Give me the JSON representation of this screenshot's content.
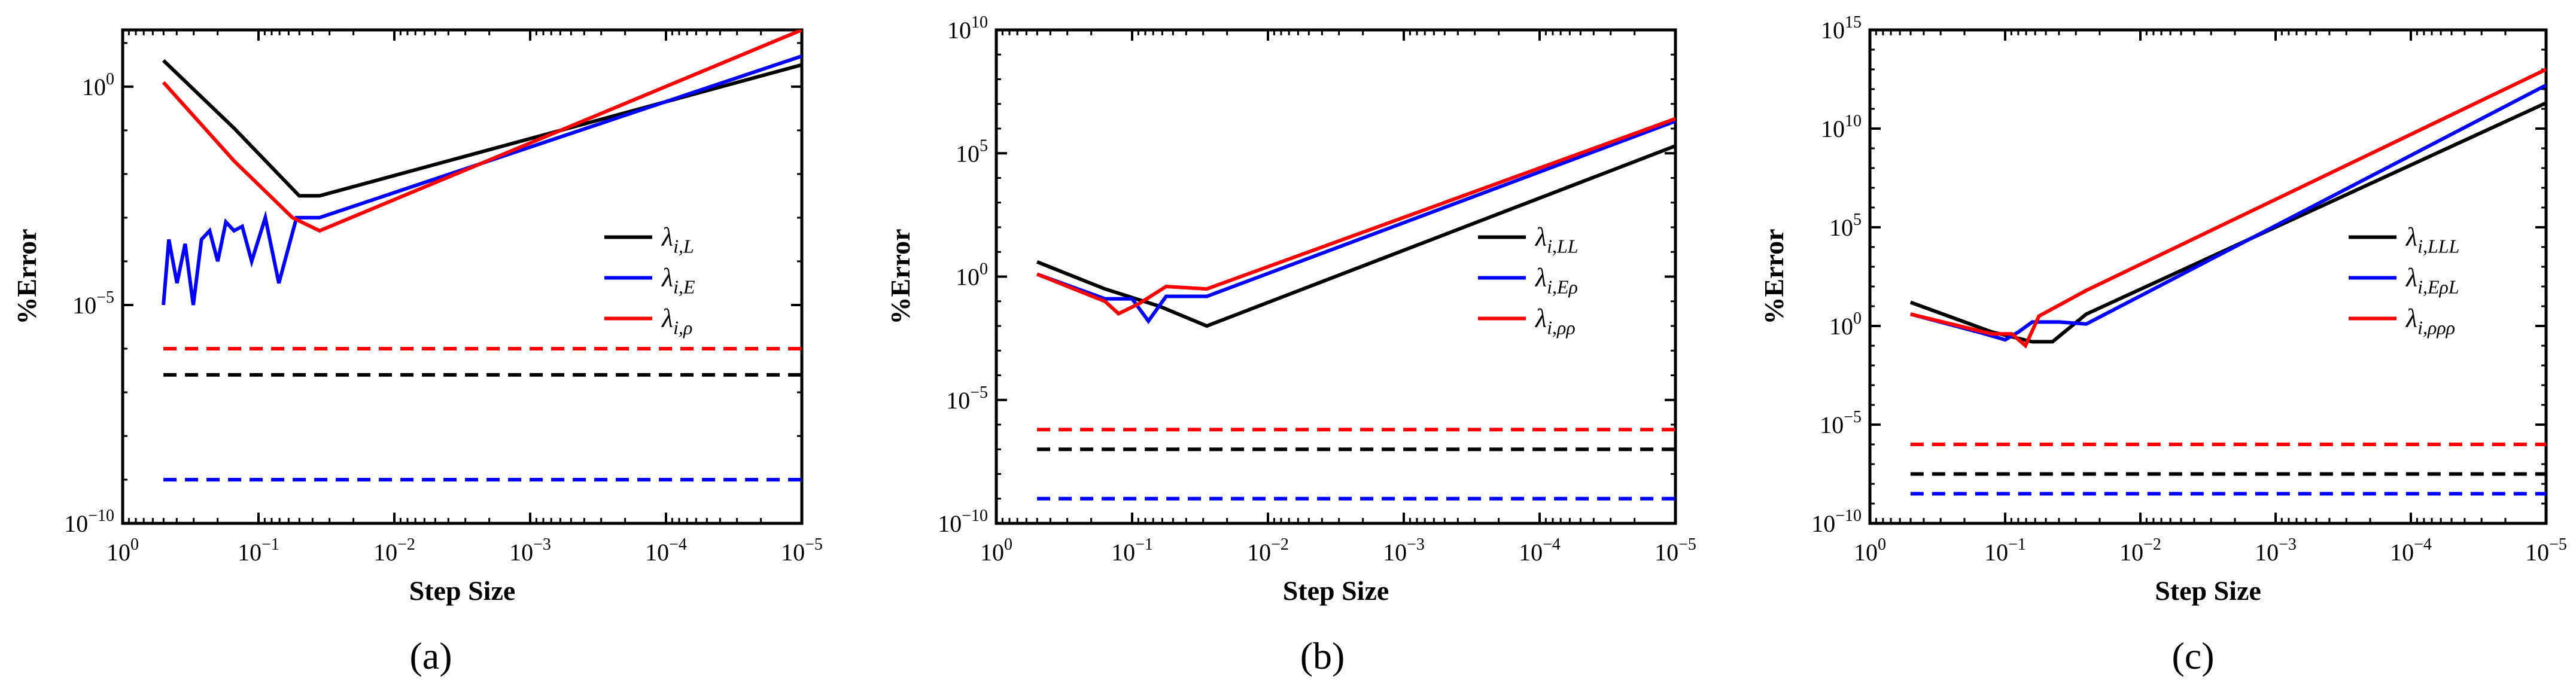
{
  "chart_data": [
    {
      "type": "line",
      "panel_label": "(a)",
      "xlabel": "Step Size",
      "ylabel": "%Error",
      "xscale": "log",
      "yscale": "log",
      "xlim": [
        1,
        1e-05
      ],
      "ylim_exp": [
        -10,
        1.3
      ],
      "x_ticks": [
        {
          "text": "10",
          "sup": "0",
          "exp": 0
        },
        {
          "text": "10",
          "sup": "−1",
          "exp": -1
        },
        {
          "text": "10",
          "sup": "−2",
          "exp": -2
        },
        {
          "text": "10",
          "sup": "−3",
          "exp": -3
        },
        {
          "text": "10",
          "sup": "−4",
          "exp": -4
        },
        {
          "text": "10",
          "sup": "−5",
          "exp": -5
        }
      ],
      "y_ticks": [
        {
          "text": "10",
          "sup": "−10",
          "exp": -10
        },
        {
          "text": "10",
          "sup": "−5",
          "exp": -5
        },
        {
          "text": "10",
          "sup": "0",
          "exp": 0
        }
      ],
      "legend_position": "center-right",
      "series": [
        {
          "name": "λ",
          "sub": "i,L",
          "color": "#000000",
          "style": "solid",
          "log10x": [
            -0.3,
            -0.82,
            -1.3,
            -1.45,
            -5.0
          ],
          "log10y": [
            0.6,
            -0.95,
            -2.5,
            -2.5,
            0.5
          ]
        },
        {
          "name": "λ",
          "sub": "i,E",
          "color": "#0000ff",
          "style": "solid",
          "log10x": [
            -0.3,
            -0.34,
            -0.4,
            -0.46,
            -0.52,
            -0.58,
            -0.64,
            -0.7,
            -0.76,
            -0.82,
            -0.88,
            -0.95,
            -1.05,
            -1.15,
            -1.28,
            -1.45,
            -5.0
          ],
          "log10y": [
            -5.0,
            -3.5,
            -4.5,
            -3.6,
            -5.0,
            -3.5,
            -3.3,
            -4.0,
            -3.1,
            -3.3,
            -3.2,
            -4.0,
            -3.0,
            -4.5,
            -3.0,
            -3.0,
            0.7
          ]
        },
        {
          "name": "λ",
          "sub": "i,ρ",
          "color": "#ff0000",
          "style": "solid",
          "log10x": [
            -0.3,
            -0.82,
            -1.25,
            -1.45,
            -5.0
          ],
          "log10y": [
            0.1,
            -1.7,
            -3.0,
            -3.3,
            1.3
          ]
        },
        {
          "name": "",
          "sub": "",
          "color": "#ff0000",
          "style": "dashed",
          "log10x": [
            -0.3,
            -5.0
          ],
          "log10y": [
            -6.0,
            -6.0
          ]
        },
        {
          "name": "",
          "sub": "",
          "color": "#000000",
          "style": "dashed",
          "log10x": [
            -0.3,
            -5.0
          ],
          "log10y": [
            -6.6,
            -6.6
          ]
        },
        {
          "name": "",
          "sub": "",
          "color": "#0000ff",
          "style": "dashed",
          "log10x": [
            -0.3,
            -5.0
          ],
          "log10y": [
            -9.0,
            -9.0
          ]
        }
      ]
    },
    {
      "type": "line",
      "panel_label": "(b)",
      "xlabel": "Step Size",
      "ylabel": "%Error",
      "xscale": "log",
      "yscale": "log",
      "xlim": [
        1,
        1e-05
      ],
      "ylim_exp": [
        -10,
        10
      ],
      "x_ticks": [
        {
          "text": "10",
          "sup": "0",
          "exp": 0
        },
        {
          "text": "10",
          "sup": "−1",
          "exp": -1
        },
        {
          "text": "10",
          "sup": "−2",
          "exp": -2
        },
        {
          "text": "10",
          "sup": "−3",
          "exp": -3
        },
        {
          "text": "10",
          "sup": "−4",
          "exp": -4
        },
        {
          "text": "10",
          "sup": "−5",
          "exp": -5
        }
      ],
      "y_ticks": [
        {
          "text": "10",
          "sup": "−10",
          "exp": -10
        },
        {
          "text": "10",
          "sup": "−5",
          "exp": -5
        },
        {
          "text": "10",
          "sup": "0",
          "exp": 0
        },
        {
          "text": "10",
          "sup": "5",
          "exp": 5
        },
        {
          "text": "10",
          "sup": "10",
          "exp": 10
        }
      ],
      "legend_position": "center-right",
      "series": [
        {
          "name": "λ",
          "sub": "i,LL",
          "color": "#000000",
          "style": "solid",
          "log10x": [
            -0.3,
            -0.8,
            -1.2,
            -1.55,
            -5.0
          ],
          "log10y": [
            0.6,
            -0.5,
            -1.2,
            -2.0,
            5.3
          ]
        },
        {
          "name": "λ",
          "sub": "i,Eρ",
          "color": "#0000ff",
          "style": "solid",
          "log10x": [
            -0.3,
            -0.8,
            -1.0,
            -1.12,
            -1.25,
            -1.55,
            -5.0
          ],
          "log10y": [
            0.1,
            -0.9,
            -0.9,
            -1.8,
            -0.8,
            -0.8,
            6.3
          ]
        },
        {
          "name": "λ",
          "sub": "i,ρρ",
          "color": "#ff0000",
          "style": "solid",
          "log10x": [
            -0.3,
            -0.8,
            -0.9,
            -1.05,
            -1.25,
            -1.55,
            -5.0
          ],
          "log10y": [
            0.1,
            -1.0,
            -1.5,
            -1.1,
            -0.4,
            -0.5,
            6.4
          ]
        },
        {
          "name": "",
          "sub": "",
          "color": "#ff0000",
          "style": "dashed",
          "log10x": [
            -0.3,
            -5.0
          ],
          "log10y": [
            -6.2,
            -6.2
          ]
        },
        {
          "name": "",
          "sub": "",
          "color": "#000000",
          "style": "dashed",
          "log10x": [
            -0.3,
            -5.0
          ],
          "log10y": [
            -7.0,
            -7.0
          ]
        },
        {
          "name": "",
          "sub": "",
          "color": "#0000ff",
          "style": "dashed",
          "log10x": [
            -0.3,
            -5.0
          ],
          "log10y": [
            -9.0,
            -9.0
          ]
        }
      ]
    },
    {
      "type": "line",
      "panel_label": "(c)",
      "xlabel": "Step Size",
      "ylabel": "%Error",
      "xscale": "log",
      "yscale": "log",
      "xlim": [
        1,
        1e-05
      ],
      "ylim_exp": [
        -10,
        15
      ],
      "x_ticks": [
        {
          "text": "10",
          "sup": "0",
          "exp": 0
        },
        {
          "text": "10",
          "sup": "−1",
          "exp": -1
        },
        {
          "text": "10",
          "sup": "−2",
          "exp": -2
        },
        {
          "text": "10",
          "sup": "−3",
          "exp": -3
        },
        {
          "text": "10",
          "sup": "−4",
          "exp": -4
        },
        {
          "text": "10",
          "sup": "−5",
          "exp": -5
        }
      ],
      "y_ticks": [
        {
          "text": "10",
          "sup": "−10",
          "exp": -10
        },
        {
          "text": "10",
          "sup": "−5",
          "exp": -5
        },
        {
          "text": "10",
          "sup": "0",
          "exp": 0
        },
        {
          "text": "10",
          "sup": "5",
          "exp": 5
        },
        {
          "text": "10",
          "sup": "10",
          "exp": 10
        },
        {
          "text": "10",
          "sup": "15",
          "exp": 15
        }
      ],
      "legend_position": "center-right",
      "series": [
        {
          "name": "λ",
          "sub": "i,LLL",
          "color": "#000000",
          "style": "solid",
          "log10x": [
            -0.3,
            -0.9,
            -1.2,
            -1.35,
            -1.6,
            -5.0
          ],
          "log10y": [
            1.2,
            -0.3,
            -0.8,
            -0.8,
            0.6,
            11.3
          ]
        },
        {
          "name": "λ",
          "sub": "i,EρL",
          "color": "#0000ff",
          "style": "solid",
          "log10x": [
            -0.3,
            -0.85,
            -1.0,
            -1.1,
            -1.2,
            -1.4,
            -1.6,
            -5.0
          ],
          "log10y": [
            0.6,
            -0.4,
            -0.7,
            -0.3,
            0.2,
            0.2,
            0.1,
            12.2
          ]
        },
        {
          "name": "λ",
          "sub": "i,ρρρ",
          "color": "#ff0000",
          "style": "solid",
          "log10x": [
            -0.3,
            -0.9,
            -1.05,
            -1.15,
            -1.25,
            -1.6,
            -5.0
          ],
          "log10y": [
            0.6,
            -0.4,
            -0.4,
            -1.0,
            0.5,
            1.8,
            13.0
          ]
        },
        {
          "name": "",
          "sub": "",
          "color": "#ff0000",
          "style": "dashed",
          "log10x": [
            -0.3,
            -5.0
          ],
          "log10y": [
            -6.0,
            -6.0
          ]
        },
        {
          "name": "",
          "sub": "",
          "color": "#000000",
          "style": "dashed",
          "log10x": [
            -0.3,
            -5.0
          ],
          "log10y": [
            -7.5,
            -7.5
          ]
        },
        {
          "name": "",
          "sub": "",
          "color": "#0000ff",
          "style": "dashed",
          "log10x": [
            -0.3,
            -5.0
          ],
          "log10y": [
            -8.5,
            -8.5
          ]
        }
      ]
    }
  ]
}
